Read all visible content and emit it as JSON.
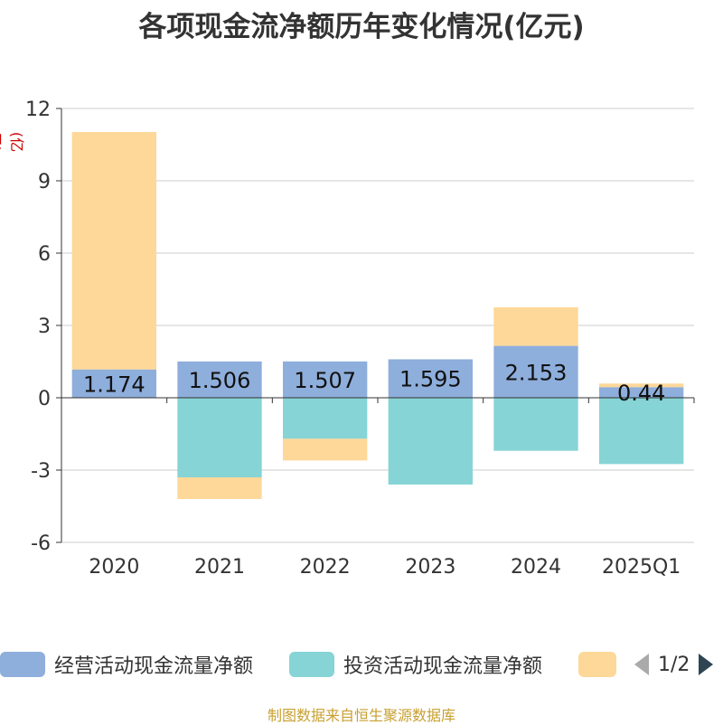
{
  "chart_title": "各项现金流净额历年变化情况(亿元)",
  "unit_label": "(亿元)",
  "source": "制图数据来自恒生聚源数据库",
  "legend": {
    "items": [
      {
        "label": "经营活动现金流量净额",
        "color": "#8eaedc"
      },
      {
        "label": "投资活动现金流量净额",
        "color": "#86d4d6"
      },
      {
        "label": "",
        "color": "#fdd898"
      }
    ],
    "page_text": "1/2"
  },
  "chart_data": {
    "type": "bar",
    "stacked": true,
    "categories": [
      "2020",
      "2021",
      "2022",
      "2023",
      "2024",
      "2025Q1"
    ],
    "series": [
      {
        "name": "经营活动现金流量净额",
        "color": "#8eaedc",
        "values": [
          1.174,
          1.506,
          1.507,
          1.595,
          2.153,
          0.44
        ],
        "labels": [
          "1.174",
          "1.506",
          "1.507",
          "1.595",
          "2.153",
          "0.44"
        ]
      },
      {
        "name": "投资活动现金流量净额",
        "color": "#86d4d6",
        "values": [
          0.0,
          -3.3,
          -1.7,
          -3.6,
          -2.2,
          -2.75
        ]
      },
      {
        "color": "#fdd898",
        "values": [
          9.85,
          -0.9,
          -0.9,
          0.0,
          1.6,
          0.15
        ]
      }
    ],
    "y_ticks": [
      12,
      9,
      6,
      3,
      0,
      -3,
      -6
    ],
    "ylim": [
      -6,
      12
    ],
    "grid": true,
    "legend_position": "bottom"
  }
}
